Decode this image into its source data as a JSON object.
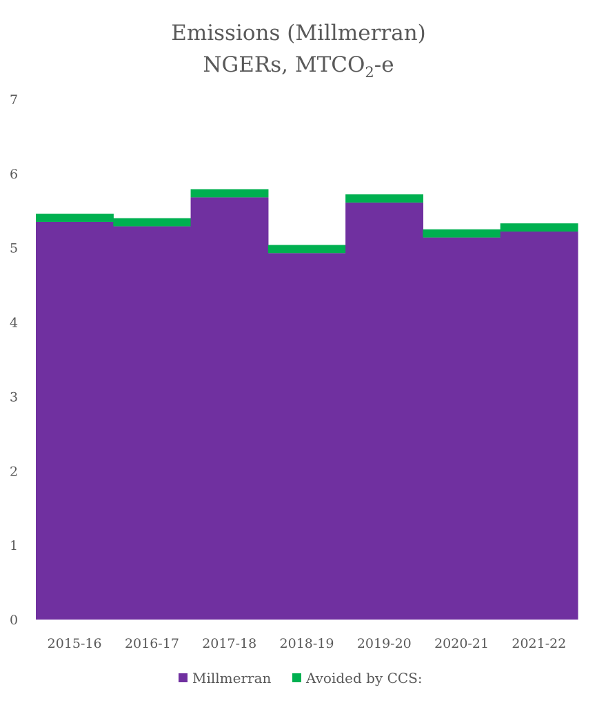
{
  "chart_data": {
    "type": "bar",
    "stacked": true,
    "title_line1": "Emissions (Millmerran)",
    "title_line2_pre": "NGERs, MTCO",
    "title_line2_sub": "2",
    "title_line2_post": "-e",
    "categories": [
      "2015-16",
      "2016-17",
      "2017-18",
      "2018-19",
      "2019-20",
      "2020-21",
      "2021-22"
    ],
    "series": [
      {
        "name": "Millmerran",
        "color": "#7030A0",
        "values": [
          5.35,
          5.29,
          5.68,
          4.93,
          5.61,
          5.14,
          5.22
        ]
      },
      {
        "name": "Avoided by CCS:",
        "color": "#00B050",
        "values": [
          0.11,
          0.11,
          0.11,
          0.11,
          0.11,
          0.11,
          0.11
        ]
      }
    ],
    "yticks": [
      0,
      1,
      2,
      3,
      4,
      5,
      6,
      7
    ],
    "ylim": [
      0,
      7
    ],
    "grid": false,
    "legend": "bottom"
  }
}
